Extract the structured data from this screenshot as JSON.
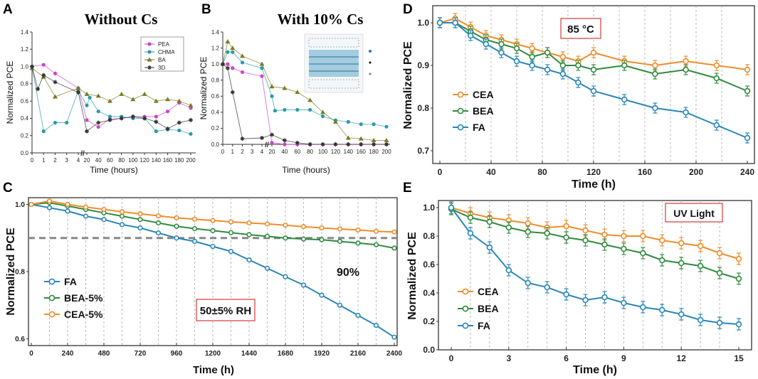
{
  "chart_data": [
    {
      "panel": "A",
      "type": "line",
      "title": "Without Cs",
      "xlabel": "Time (hours)",
      "ylabel": "Normalized PCE",
      "ylim": [
        0,
        1.4
      ],
      "yticks": [
        "0.0",
        "0.2",
        "0.4",
        "0.6",
        "0.8",
        "1.0",
        "1.2",
        "1.4"
      ],
      "xticks": [
        "0",
        "1",
        "2",
        "3",
        "4",
        "20",
        "40",
        "60",
        "80",
        "100",
        "120",
        "140",
        "160",
        "180",
        "200"
      ],
      "break_mark": "//",
      "legend": [
        "PEA",
        "CHMA",
        "BA",
        "3D"
      ],
      "series": [
        {
          "name": "PEA",
          "color": "#cc44cc",
          "marker": "circle",
          "x": [
            0,
            1,
            2,
            4,
            20,
            40,
            60,
            80,
            100,
            120,
            140,
            160,
            180,
            200
          ],
          "y": [
            1.0,
            1.02,
            0.92,
            0.75,
            0.38,
            0.3,
            0.39,
            0.4,
            0.42,
            0.42,
            0.42,
            0.48,
            0.58,
            0.52
          ]
        },
        {
          "name": "CHMA",
          "color": "#2a9aa8",
          "marker": "circle",
          "x": [
            0,
            1,
            2,
            3,
            4,
            20,
            25,
            40,
            60,
            80,
            100,
            120,
            140,
            160,
            180,
            200
          ],
          "y": [
            1.0,
            0.25,
            0.35,
            0.35,
            0.72,
            0.55,
            0.64,
            0.48,
            0.42,
            0.42,
            0.4,
            0.4,
            0.25,
            0.27,
            0.26,
            0.22
          ]
        },
        {
          "name": "BA",
          "color": "#7a7a20",
          "marker": "triangle",
          "x": [
            0,
            1,
            2,
            4,
            20,
            40,
            60,
            80,
            100,
            120,
            140,
            160,
            180,
            200
          ],
          "y": [
            0.98,
            0.88,
            0.65,
            0.75,
            0.68,
            0.66,
            0.6,
            0.68,
            0.62,
            0.68,
            0.6,
            0.62,
            0.6,
            0.55
          ]
        },
        {
          "name": "3D",
          "color": "#333333",
          "marker": "star",
          "x": [
            0,
            0.5,
            1,
            2,
            4,
            20,
            40,
            60,
            80,
            100,
            120,
            140,
            160,
            180,
            200
          ],
          "y": [
            1.0,
            0.74,
            0.9,
            0.82,
            0.7,
            0.25,
            0.35,
            0.38,
            0.4,
            0.42,
            0.4,
            0.36,
            0.28,
            0.35,
            0.38
          ]
        }
      ]
    },
    {
      "panel": "B",
      "type": "line",
      "title": "With 10% Cs",
      "xlabel": "Time (hours)",
      "ylabel": "Normalized PCE",
      "ylim": [
        0,
        1.4
      ],
      "yticks": [
        "0.0",
        "0.2",
        "0.4",
        "0.6",
        "0.8",
        "1.0",
        "1.2",
        "1.4"
      ],
      "xticks": [
        "0",
        "1",
        "2",
        "3",
        "4",
        "20",
        "40",
        "60",
        "80",
        "100",
        "120",
        "140",
        "160",
        "180",
        "200"
      ],
      "break_mark": "//",
      "series": [
        {
          "name": "PEA",
          "color": "#cc44cc",
          "marker": "circle",
          "x": [
            0,
            0.5,
            1,
            2,
            4,
            20,
            40,
            60,
            80,
            100,
            120,
            140,
            160,
            180,
            200
          ],
          "y": [
            1.0,
            1.0,
            0.95,
            0.9,
            0.85,
            0.02,
            0.0,
            0.0,
            0.0,
            0.0,
            0.0,
            0.0,
            0.0,
            0.0,
            0.0
          ]
        },
        {
          "name": "CHMA",
          "color": "#2a9aa8",
          "marker": "circle",
          "x": [
            0,
            0.5,
            1,
            2,
            4,
            20,
            25,
            40,
            60,
            80,
            100,
            120,
            140,
            160,
            180,
            200
          ],
          "y": [
            1.0,
            1.15,
            1.15,
            1.02,
            0.95,
            0.6,
            0.42,
            0.43,
            0.43,
            0.43,
            0.35,
            0.3,
            0.28,
            0.25,
            0.25,
            0.22
          ]
        },
        {
          "name": "BA",
          "color": "#7a7a20",
          "marker": "triangle",
          "x": [
            0,
            0.5,
            1,
            2,
            4,
            20,
            40,
            60,
            80,
            100,
            120,
            140,
            160,
            180,
            200
          ],
          "y": [
            1.0,
            1.28,
            1.2,
            1.1,
            1.0,
            0.72,
            0.7,
            0.65,
            0.55,
            0.4,
            0.28,
            0.08,
            0.07,
            0.05,
            0.05
          ]
        },
        {
          "name": "3D",
          "color": "#333333",
          "marker": "star",
          "x": [
            0,
            0.5,
            1,
            2,
            4,
            20,
            40,
            60,
            80,
            100,
            120,
            140,
            160,
            180,
            200
          ],
          "y": [
            1.0,
            0.95,
            0.65,
            0.07,
            0.08,
            0.12,
            0.05,
            0.02,
            0.0,
            0.0,
            0.0,
            0.0,
            0.0,
            0.0,
            0.0
          ]
        }
      ]
    },
    {
      "panel": "C",
      "type": "line",
      "xlabel": "Time (h)",
      "ylabel": "Normalized PCE",
      "ylim": [
        0.58,
        1.02
      ],
      "yticks": [
        "0.6",
        "0.8",
        "1.0"
      ],
      "xticks": [
        "0",
        "240",
        "480",
        "720",
        "960",
        "1200",
        "1440",
        "1680",
        "1920",
        "2160",
        "2400"
      ],
      "reference_line": {
        "y": 0.9,
        "label": "90%"
      },
      "annotation": "50±5% RH",
      "legend": [
        "FA",
        "BEA-5%",
        "CEA-5%"
      ],
      "series": [
        {
          "name": "FA",
          "color": "#2a86b8",
          "x": [
            0,
            120,
            240,
            360,
            480,
            600,
            720,
            840,
            960,
            1080,
            1200,
            1320,
            1440,
            1560,
            1680,
            1800,
            1920,
            2040,
            2160,
            2280,
            2400
          ],
          "y": [
            1.0,
            0.99,
            0.98,
            0.965,
            0.955,
            0.94,
            0.93,
            0.915,
            0.9,
            0.89,
            0.875,
            0.86,
            0.835,
            0.81,
            0.785,
            0.76,
            0.73,
            0.7,
            0.67,
            0.64,
            0.605
          ]
        },
        {
          "name": "BEA-5%",
          "color": "#2e8b3e",
          "x": [
            0,
            120,
            240,
            360,
            480,
            600,
            720,
            840,
            960,
            1080,
            1200,
            1320,
            1440,
            1560,
            1680,
            1800,
            1920,
            2040,
            2160,
            2280,
            2400
          ],
          "y": [
            1.0,
            1.005,
            0.995,
            0.985,
            0.975,
            0.965,
            0.955,
            0.945,
            0.935,
            0.928,
            0.922,
            0.916,
            0.91,
            0.905,
            0.9,
            0.897,
            0.895,
            0.89,
            0.885,
            0.88,
            0.87
          ]
        },
        {
          "name": "CEA-5%",
          "color": "#f08c2a",
          "x": [
            0,
            120,
            240,
            360,
            480,
            600,
            720,
            840,
            960,
            1080,
            1200,
            1320,
            1440,
            1560,
            1680,
            1800,
            1920,
            2040,
            2160,
            2280,
            2400
          ],
          "y": [
            1.0,
            1.01,
            1.0,
            0.992,
            0.985,
            0.978,
            0.972,
            0.966,
            0.96,
            0.956,
            0.952,
            0.948,
            0.945,
            0.942,
            0.938,
            0.934,
            0.93,
            0.927,
            0.924,
            0.92,
            0.918
          ]
        }
      ]
    },
    {
      "panel": "D",
      "type": "line",
      "xlabel": "Time (h)",
      "ylabel": "Normalized PCE",
      "ylim": [
        0.67,
        1.04
      ],
      "yticks": [
        "0.7",
        "0.8",
        "0.9",
        "1.0"
      ],
      "xticks": [
        "0",
        "40",
        "80",
        "120",
        "160",
        "200",
        "240"
      ],
      "annotation": "85 °C",
      "legend": [
        "CEA",
        "BEA",
        "FA"
      ],
      "series": [
        {
          "name": "CEA",
          "color": "#f08c2a",
          "x": [
            0,
            12,
            24,
            36,
            48,
            60,
            72,
            84,
            96,
            108,
            120,
            144,
            168,
            192,
            216,
            240
          ],
          "y": [
            1.0,
            1.01,
            0.99,
            0.97,
            0.96,
            0.95,
            0.94,
            0.93,
            0.92,
            0.91,
            0.93,
            0.91,
            0.9,
            0.91,
            0.9,
            0.89
          ]
        },
        {
          "name": "BEA",
          "color": "#2e8b3e",
          "x": [
            0,
            12,
            24,
            36,
            48,
            60,
            72,
            84,
            96,
            108,
            120,
            144,
            168,
            192,
            216,
            240
          ],
          "y": [
            1.0,
            1.0,
            0.98,
            0.96,
            0.95,
            0.94,
            0.92,
            0.93,
            0.9,
            0.9,
            0.89,
            0.9,
            0.88,
            0.89,
            0.87,
            0.84
          ]
        },
        {
          "name": "FA",
          "color": "#2a86b8",
          "x": [
            0,
            12,
            24,
            36,
            48,
            60,
            72,
            84,
            96,
            108,
            120,
            144,
            168,
            192,
            216,
            240
          ],
          "y": [
            1.0,
            1.0,
            0.97,
            0.95,
            0.93,
            0.91,
            0.9,
            0.89,
            0.88,
            0.86,
            0.84,
            0.82,
            0.8,
            0.79,
            0.76,
            0.73
          ]
        }
      ]
    },
    {
      "panel": "E",
      "type": "line",
      "xlabel": "Time (h)",
      "ylabel": "Normalized PCE",
      "ylim": [
        0,
        1.05
      ],
      "yticks": [
        "0.0",
        "0.2",
        "0.4",
        "0.6",
        "0.8",
        "1.0"
      ],
      "xticks": [
        "0",
        "3",
        "6",
        "9",
        "12",
        "15"
      ],
      "annotation": "UV Light",
      "legend": [
        "CEA",
        "BEA",
        "FA"
      ],
      "series": [
        {
          "name": "CEA",
          "color": "#f08c2a",
          "x": [
            0,
            1,
            2,
            3,
            4,
            5,
            6,
            7,
            8,
            9,
            10,
            11,
            12,
            13,
            14,
            15
          ],
          "y": [
            1.0,
            0.96,
            0.93,
            0.91,
            0.89,
            0.86,
            0.87,
            0.84,
            0.81,
            0.8,
            0.8,
            0.77,
            0.75,
            0.73,
            0.68,
            0.64
          ]
        },
        {
          "name": "BEA",
          "color": "#2e8b3e",
          "x": [
            0,
            1,
            2,
            3,
            4,
            5,
            6,
            7,
            8,
            9,
            10,
            11,
            12,
            13,
            14,
            15
          ],
          "y": [
            0.99,
            0.93,
            0.9,
            0.86,
            0.83,
            0.82,
            0.79,
            0.77,
            0.74,
            0.71,
            0.68,
            0.63,
            0.61,
            0.59,
            0.54,
            0.5
          ]
        },
        {
          "name": "FA",
          "color": "#2a86b8",
          "x": [
            0,
            1,
            2,
            3,
            4,
            5,
            6,
            7,
            8,
            9,
            10,
            11,
            12,
            13,
            14,
            15
          ],
          "y": [
            1.0,
            0.82,
            0.72,
            0.56,
            0.47,
            0.44,
            0.39,
            0.35,
            0.37,
            0.33,
            0.3,
            0.28,
            0.25,
            0.21,
            0.19,
            0.18
          ]
        }
      ]
    }
  ]
}
